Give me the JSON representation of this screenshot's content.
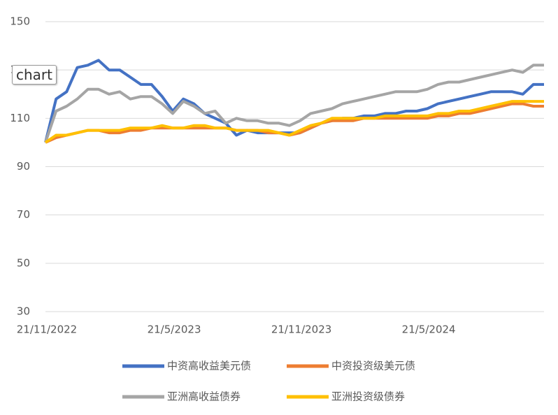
{
  "chart_data": {
    "type": "line",
    "categories": [
      "21/11/2022",
      null,
      null,
      null,
      null,
      null,
      null,
      null,
      null,
      null,
      null,
      null,
      "21/5/2023",
      null,
      null,
      null,
      null,
      null,
      null,
      null,
      null,
      null,
      null,
      null,
      "21/11/2023",
      null,
      null,
      null,
      null,
      null,
      null,
      null,
      null,
      null,
      null,
      null,
      "21/5/2024",
      null,
      null,
      null,
      null,
      null,
      null,
      null,
      null,
      null,
      null,
      null
    ],
    "ylim": [
      30,
      150
    ],
    "yticks": [
      30,
      50,
      70,
      90,
      110,
      130,
      150
    ],
    "grid": true,
    "series": [
      {
        "name": "中资高收益美元债",
        "color": "#4472c4",
        "values": [
          100,
          118,
          121,
          131,
          132,
          134,
          130,
          130,
          127,
          124,
          124,
          119,
          113,
          118,
          116,
          112,
          110,
          108,
          103,
          105,
          104,
          104,
          104,
          104,
          104,
          106,
          108,
          109,
          110,
          110,
          111,
          111,
          112,
          112,
          113,
          113,
          114,
          116,
          117,
          118,
          119,
          120,
          121,
          121,
          121,
          120,
          124,
          124
        ]
      },
      {
        "name": "中资投资级美元债",
        "color": "#ed7d31",
        "values": [
          100,
          102,
          103,
          104,
          105,
          105,
          104,
          104,
          105,
          105,
          106,
          106,
          106,
          106,
          106,
          106,
          106,
          106,
          105,
          105,
          105,
          104,
          104,
          103,
          104,
          106,
          108,
          109,
          109,
          109,
          110,
          110,
          110,
          110,
          110,
          110,
          110,
          111,
          111,
          112,
          112,
          113,
          114,
          115,
          116,
          116,
          115,
          115
        ]
      },
      {
        "name": "亚洲高收益债券",
        "color": "#a5a5a5",
        "values": [
          100,
          113,
          115,
          118,
          122,
          122,
          120,
          121,
          118,
          119,
          119,
          116,
          112,
          117,
          115,
          112,
          113,
          108,
          110,
          109,
          109,
          108,
          108,
          107,
          109,
          112,
          113,
          114,
          116,
          117,
          118,
          119,
          120,
          121,
          121,
          121,
          122,
          124,
          125,
          125,
          126,
          127,
          128,
          129,
          130,
          129,
          132,
          132
        ]
      },
      {
        "name": "亚洲投资级债券",
        "color": "#ffc000",
        "values": [
          100,
          103,
          103,
          104,
          105,
          105,
          105,
          105,
          106,
          106,
          106,
          107,
          106,
          106,
          107,
          107,
          106,
          106,
          105,
          105,
          105,
          105,
          104,
          103,
          105,
          107,
          108,
          110,
          110,
          110,
          110,
          110,
          111,
          111,
          111,
          111,
          111,
          112,
          112,
          113,
          113,
          114,
          115,
          116,
          117,
          117,
          117,
          117
        ]
      }
    ]
  },
  "tooltip": "chart"
}
